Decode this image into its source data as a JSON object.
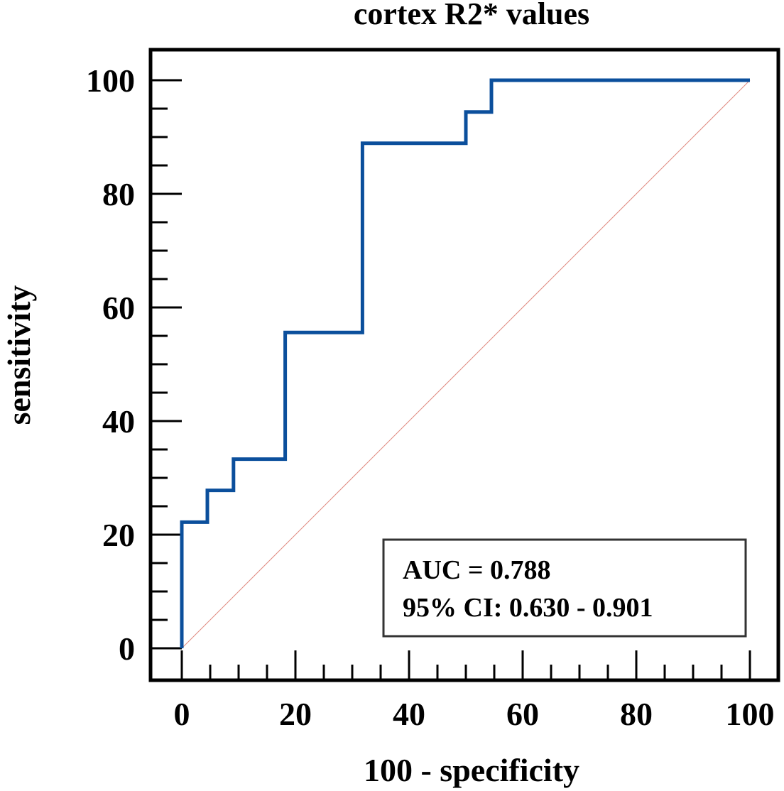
{
  "chart_data": {
    "type": "line",
    "title": "cortex R2* values",
    "xlabel": "100 - specificity",
    "ylabel": "sensitivity",
    "xlim": [
      0,
      100
    ],
    "ylim": [
      0,
      100
    ],
    "x_ticks": [
      0,
      20,
      40,
      60,
      80,
      100
    ],
    "y_ticks": [
      0,
      20,
      40,
      60,
      80,
      100
    ],
    "series": [
      {
        "name": "ROC curve",
        "color": "#0b4f9c",
        "points": [
          [
            0,
            0
          ],
          [
            0,
            22.2
          ],
          [
            4.5,
            22.2
          ],
          [
            4.5,
            27.8
          ],
          [
            9.1,
            27.8
          ],
          [
            9.1,
            33.3
          ],
          [
            18.2,
            33.3
          ],
          [
            18.2,
            55.6
          ],
          [
            31.8,
            55.6
          ],
          [
            31.8,
            88.9
          ],
          [
            50.0,
            88.9
          ],
          [
            50.0,
            94.4
          ],
          [
            54.5,
            94.4
          ],
          [
            54.5,
            100
          ],
          [
            100,
            100
          ]
        ]
      },
      {
        "name": "reference line",
        "color": "#e08a80",
        "points": [
          [
            0,
            0
          ],
          [
            100,
            100
          ]
        ]
      }
    ],
    "annotation": {
      "auc": "AUC = 0.788",
      "ci": "95% CI: 0.630 - 0.901"
    }
  }
}
